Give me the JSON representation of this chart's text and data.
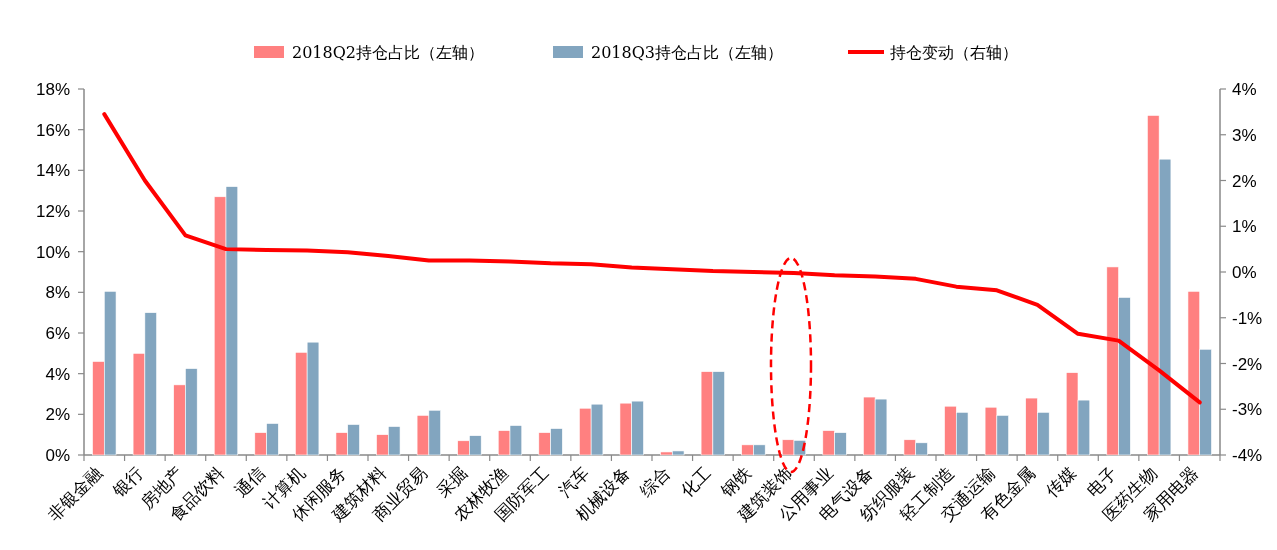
{
  "chart_data": {
    "type": "bar",
    "categories": [
      "非银金融",
      "银行",
      "房地产",
      "食品饮料",
      "通信",
      "计算机",
      "休闲服务",
      "建筑材料",
      "商业贸易",
      "采掘",
      "农林牧渔",
      "国防军工",
      "汽车",
      "机械设备",
      "综合",
      "化工",
      "钢铁",
      "建筑装饰",
      "公用事业",
      "电气设备",
      "纺织服装",
      "轻工制造",
      "交通运输",
      "有色金属",
      "传媒",
      "电子",
      "医药生物",
      "家用电器"
    ],
    "series": [
      {
        "name": "2018Q2持仓占比（左轴）",
        "color": "#ff8080",
        "values": [
          4.6,
          5.0,
          3.45,
          12.7,
          1.1,
          5.05,
          1.1,
          1.0,
          1.95,
          0.7,
          1.2,
          1.1,
          2.3,
          2.55,
          0.15,
          4.1,
          0.5,
          0.75,
          1.2,
          2.85,
          0.75,
          2.4,
          2.35,
          2.8,
          4.05,
          9.25,
          16.7,
          8.05
        ]
      },
      {
        "name": "2018Q3持仓占比（左轴）",
        "color": "#82a5bf",
        "values": [
          8.05,
          7.0,
          4.25,
          13.2,
          1.55,
          5.55,
          1.5,
          1.4,
          2.2,
          0.95,
          1.45,
          1.3,
          2.5,
          2.65,
          0.2,
          4.1,
          0.5,
          0.72,
          1.1,
          2.75,
          0.6,
          2.1,
          1.95,
          2.1,
          2.7,
          7.75,
          14.55,
          5.2
        ]
      },
      {
        "name": "持仓变动（右轴）",
        "type": "line",
        "axis": "y2",
        "color": "#ff0000",
        "values": [
          3.45,
          2.0,
          0.8,
          0.5,
          0.48,
          0.47,
          0.43,
          0.35,
          0.25,
          0.25,
          0.23,
          0.19,
          0.17,
          0.1,
          0.06,
          0.02,
          0.0,
          -0.02,
          -0.07,
          -0.1,
          -0.15,
          -0.32,
          -0.4,
          -0.72,
          -1.35,
          -1.5,
          -2.15,
          -2.85
        ]
      }
    ],
    "ylim": [
      0,
      18
    ],
    "yticks": [
      {
        "value": 0,
        "label": "0%"
      },
      {
        "value": 2,
        "label": "2%"
      },
      {
        "value": 4,
        "label": "4%"
      },
      {
        "value": 6,
        "label": "6%"
      },
      {
        "value": 8,
        "label": "8%"
      },
      {
        "value": 10,
        "label": "10%"
      },
      {
        "value": 12,
        "label": "12%"
      },
      {
        "value": 14,
        "label": "14%"
      },
      {
        "value": 16,
        "label": "16%"
      },
      {
        "value": 18,
        "label": "18%"
      }
    ],
    "y2lim": [
      -4,
      4
    ],
    "y2ticks": [
      {
        "value": -4,
        "label": "-4%"
      },
      {
        "value": -3,
        "label": "-3%"
      },
      {
        "value": -2,
        "label": "-2%"
      },
      {
        "value": -1,
        "label": "-1%"
      },
      {
        "value": 0,
        "label": "0%"
      },
      {
        "value": 1,
        "label": "1%"
      },
      {
        "value": 2,
        "label": "2%"
      },
      {
        "value": 3,
        "label": "3%"
      },
      {
        "value": 4,
        "label": "4%"
      }
    ],
    "legend": "top"
  }
}
